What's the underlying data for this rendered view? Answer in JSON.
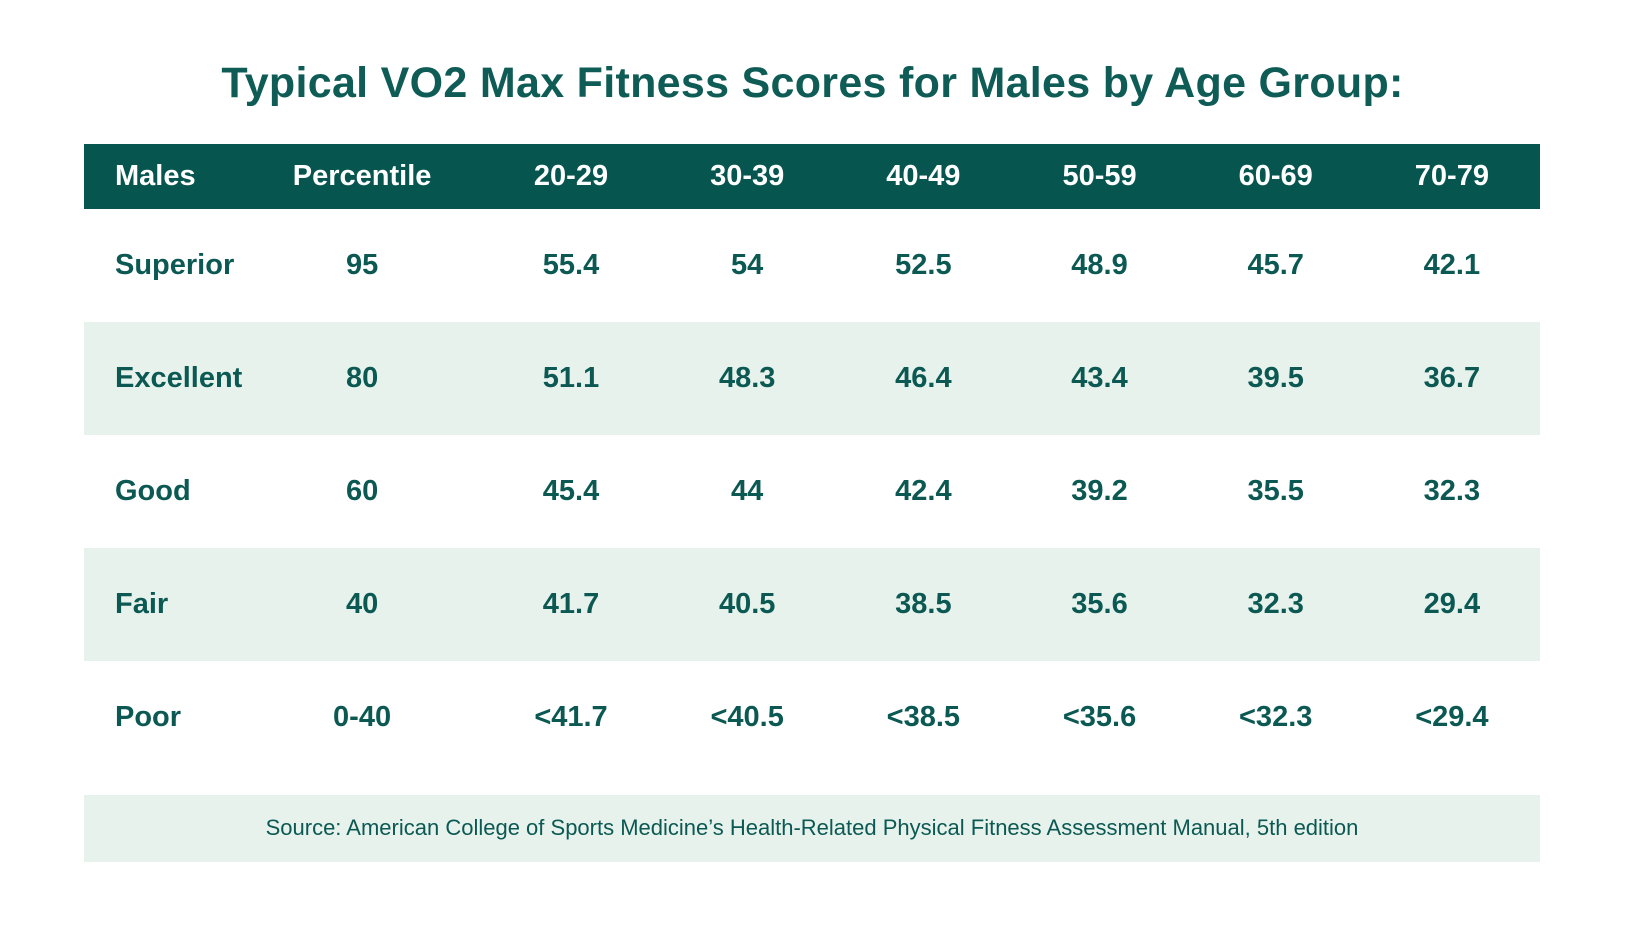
{
  "chart_data": {
    "type": "table",
    "title": "Typical VO2 Max Fitness Scores for Males by Age Group:",
    "columns": [
      "Males",
      "Percentile",
      "20-29",
      "30-39",
      "40-49",
      "50-59",
      "60-69",
      "70-79"
    ],
    "rows": [
      [
        "Superior",
        "95",
        "55.4",
        "54",
        "52.5",
        "48.9",
        "45.7",
        "42.1"
      ],
      [
        "Excellent",
        "80",
        "51.1",
        "48.3",
        "46.4",
        "43.4",
        "39.5",
        "36.7"
      ],
      [
        "Good",
        "60",
        "45.4",
        "44",
        "42.4",
        "39.2",
        "35.5",
        "32.3"
      ],
      [
        "Fair",
        "40",
        "41.7",
        "40.5",
        "38.5",
        "35.6",
        "32.3",
        "29.4"
      ],
      [
        "Poor",
        "0-40",
        "<41.7",
        "<40.5",
        "<38.5",
        "<35.6",
        "<32.3",
        "<29.4"
      ]
    ],
    "source": "Source: American College of Sports Medicine’s Health-Related Physical Fitness Assessment Manual, 5th edition",
    "layout_hints": {
      "striped_rows": [
        "Excellent",
        "Fair"
      ],
      "header_position": "top",
      "first_column_alignment": "left",
      "data_alignment": "center"
    }
  },
  "colors": {
    "header_bg": "#06564f",
    "header_text": "#ffffff",
    "row_alt_bg": "#e8f2ed",
    "body_text": "#0b5952",
    "title_text": "#0e5c55",
    "page_bg": "#ffffff"
  }
}
